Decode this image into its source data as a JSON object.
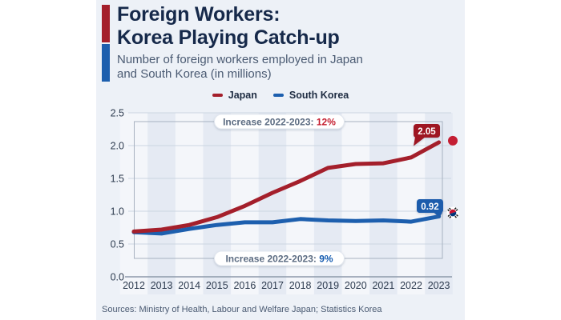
{
  "header": {
    "title_line1": "Foreign Workers:",
    "title_line2": "Korea Playing Catch-up",
    "subtitle_line1": "Number of foreign workers employed in Japan",
    "subtitle_line2": "and South Korea (in millions)"
  },
  "colors": {
    "card_bg": "#edf1f7",
    "stripe_light": "#f4f6fa",
    "stripe_dark": "#e5eaf3",
    "gridline": "#ccd5e1",
    "axis_line": "#8d99aa",
    "bracket": "#a8b2c0",
    "title_navy": "#16294a",
    "subtitle_gray": "#4a5a72",
    "tick_label": "#2c3a4e",
    "legend_text": "#1d2b41",
    "pill_text": "#5c6c82",
    "pill_bg": "#ffffff",
    "pill_border": "#e2e7ef",
    "japan_red": "#a41f2b",
    "japan_label_bg": "#9e1422",
    "japan_dot": "#c41e33",
    "korea_blue": "#1d5fae",
    "korea_label_bg": "#1a5bac",
    "korea_flag_red": "#c8102e",
    "korea_flag_blue": "#003478"
  },
  "legend": {
    "items": [
      {
        "label": "Japan",
        "color": "#a41f2b"
      },
      {
        "label": "South Korea",
        "color": "#1d5fae"
      }
    ]
  },
  "chart_data": {
    "type": "line",
    "title": "Foreign Workers: Korea Playing Catch-up",
    "subtitle": "Number of foreign workers employed in Japan and South Korea (in millions)",
    "x": [
      2012,
      2013,
      2014,
      2015,
      2016,
      2017,
      2018,
      2019,
      2020,
      2021,
      2022,
      2023
    ],
    "series": [
      {
        "name": "Japan",
        "color": "#a41f2b",
        "label_bg": "#9e1422",
        "end_label": "2.05",
        "end_marker": "japan-flag-dot",
        "values": [
          0.69,
          0.72,
          0.79,
          0.91,
          1.08,
          1.28,
          1.46,
          1.66,
          1.72,
          1.73,
          1.82,
          2.05
        ]
      },
      {
        "name": "South Korea",
        "color": "#1d5fae",
        "label_bg": "#1a5bac",
        "end_label": "0.92",
        "end_marker": "south-korea-flag",
        "values": [
          0.68,
          0.66,
          0.73,
          0.79,
          0.83,
          0.83,
          0.88,
          0.86,
          0.85,
          0.86,
          0.84,
          0.92
        ]
      }
    ],
    "xlabel": "",
    "ylabel": "",
    "ylim": [
      0.0,
      2.5
    ],
    "yticks": [
      "0.0",
      "0.5",
      "1.0",
      "1.5",
      "2.0",
      "2.5"
    ],
    "grid": true,
    "legend_position": "top",
    "annotations": [
      {
        "position": "top",
        "text": "Increase 2022-2023:",
        "value": "12%",
        "value_color": "#c41e2e"
      },
      {
        "position": "bottom",
        "text": "Increase 2022-2023:",
        "value": "9%",
        "value_color": "#145bb0"
      }
    ]
  },
  "footer": {
    "sources": "Sources: Ministry of Health, Labour and Welfare Japan; Statistics Korea"
  }
}
